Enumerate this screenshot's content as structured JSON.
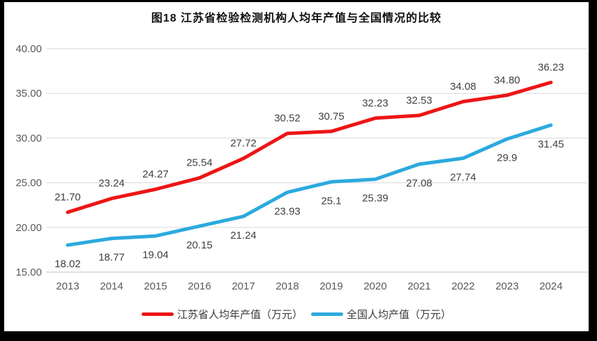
{
  "title": "图18  江苏省检验检测机构人均年产值与全国情况的比较",
  "chart_data": {
    "type": "line",
    "title": "图18  江苏省检验检测机构人均年产值与全国情况的比较",
    "categories": [
      "2013",
      "2014",
      "2015",
      "2016",
      "2017",
      "2018",
      "2019",
      "2020",
      "2021",
      "2022",
      "2023",
      "2024"
    ],
    "series": [
      {
        "name": "江苏省人均年产值（万元）",
        "color": "#ed1515",
        "values": [
          21.7,
          23.24,
          24.27,
          25.54,
          27.72,
          30.52,
          30.75,
          32.23,
          32.53,
          34.08,
          34.8,
          36.23
        ],
        "labels": [
          "21.70",
          "23.24",
          "24.27",
          "25.54",
          "27.72",
          "30.52",
          "30.75",
          "32.23",
          "32.53",
          "34.08",
          "34.80",
          "36.23"
        ]
      },
      {
        "name": "全国人均产值（万元）",
        "color": "#2caade",
        "values": [
          18.02,
          18.77,
          19.04,
          20.15,
          21.24,
          23.93,
          25.1,
          25.39,
          27.08,
          27.74,
          29.9,
          31.45
        ],
        "labels": [
          "18.02",
          "18.77",
          "19.04",
          "20.15",
          "21.24",
          "23.93",
          "25.1",
          "25.39",
          "27.08",
          "27.74",
          "29.9",
          "31.45"
        ]
      }
    ],
    "ylim": [
      15,
      40
    ],
    "yticks": [
      "15.00",
      "20.00",
      "25.00",
      "30.00",
      "35.00",
      "40.00"
    ],
    "xlabel": "",
    "ylabel": "",
    "grid": true,
    "legend_position": "bottom",
    "gridline_color": "#d9d9d9",
    "axis_line_color": "#bfbfbf",
    "tick_text_color": "#595959",
    "data_label_color": "#404040"
  }
}
